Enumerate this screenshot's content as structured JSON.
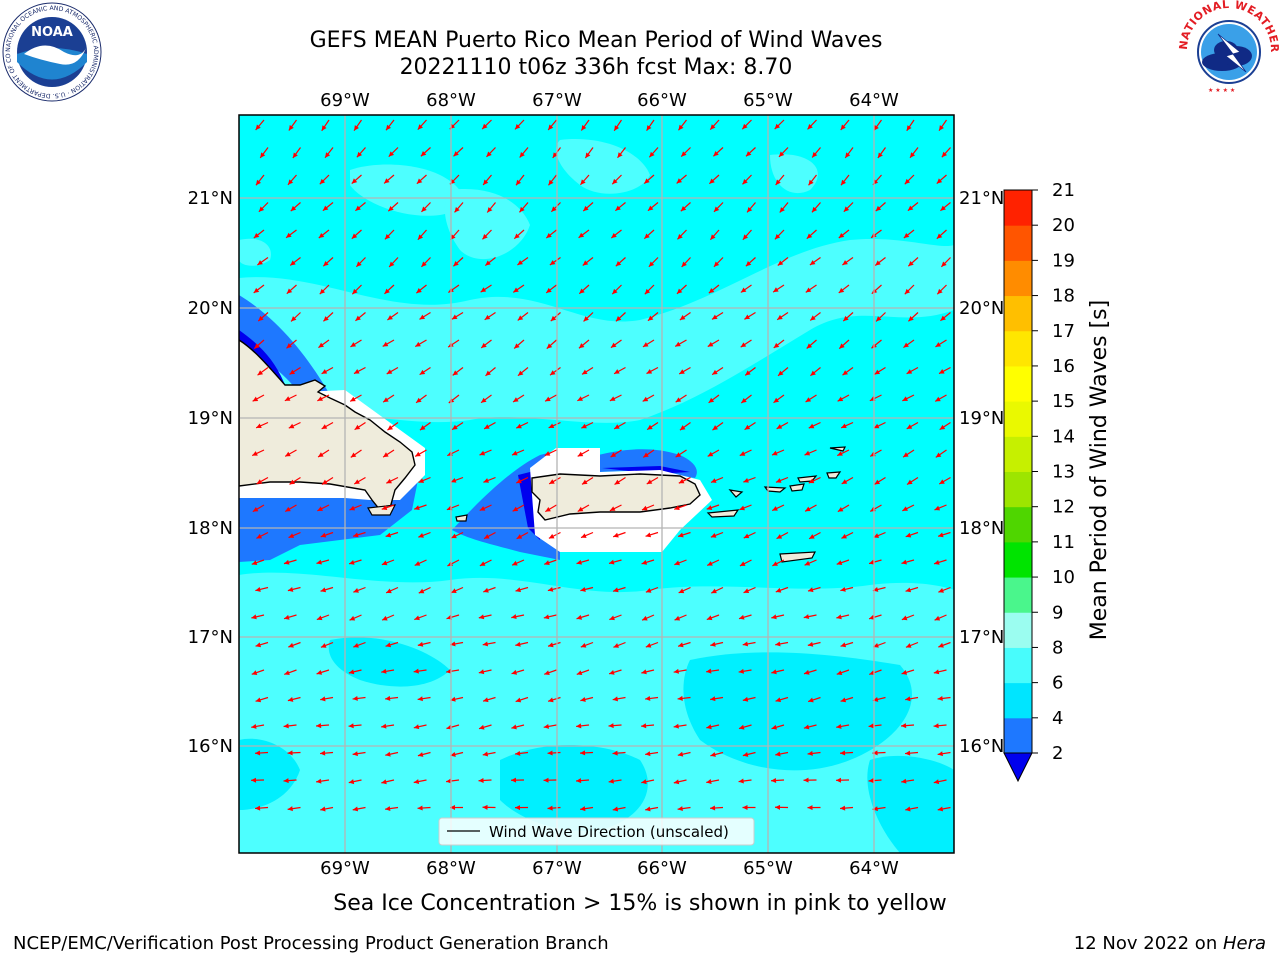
{
  "title": {
    "line1": "GEFS MEAN Puerto Rico Mean Period of Wind Waves",
    "line2": "20221110 t06z 336h fcst   Max: 8.70"
  },
  "map": {
    "lon_ticks": [
      "69°W",
      "68°W",
      "67°W",
      "66°W",
      "65°W",
      "64°W"
    ],
    "lat_ticks": [
      "21°N",
      "20°N",
      "19°N",
      "18°N",
      "17°N",
      "16°N"
    ],
    "legend_label": "Wind Wave Direction (unscaled)",
    "vector_color": "#ff0000",
    "coast_color": "#000000",
    "land_color": "#efecdc"
  },
  "colorbar": {
    "label": "Mean Period of Wind Waves [s]",
    "ticks": [
      "2",
      "4",
      "6",
      "8",
      "9",
      "10",
      "11",
      "12",
      "13",
      "14",
      "15",
      "16",
      "17",
      "18",
      "19",
      "20",
      "21"
    ],
    "colors": [
      "#0000ee",
      "#1e78ff",
      "#00e5ff",
      "#48fcfc",
      "#9bfdf0",
      "#4af68c",
      "#00e400",
      "#4fd600",
      "#9de500",
      "#c6f000",
      "#eaf900",
      "#ffff00",
      "#ffe600",
      "#ffbf00",
      "#ff8c00",
      "#ff5500",
      "#ff2200",
      "#ff0000"
    ]
  },
  "caption": "Sea Ice Concentration > 15% is shown in pink to yellow",
  "footer": {
    "left": "NCEP/EMC/Verification Post Processing Product Generation Branch",
    "right_prefix": "12 Nov 2022 on ",
    "right_host": "Hera"
  },
  "logos": {
    "noaa": "NOAA",
    "noaa_ring": "NATIONAL OCEANIC AND ATMOSPHERIC ADMINISTRATION · U.S. DEPARTMENT OF COMMERCE ·",
    "nws_ring": "NATIONAL WEATHER SERVICE"
  }
}
